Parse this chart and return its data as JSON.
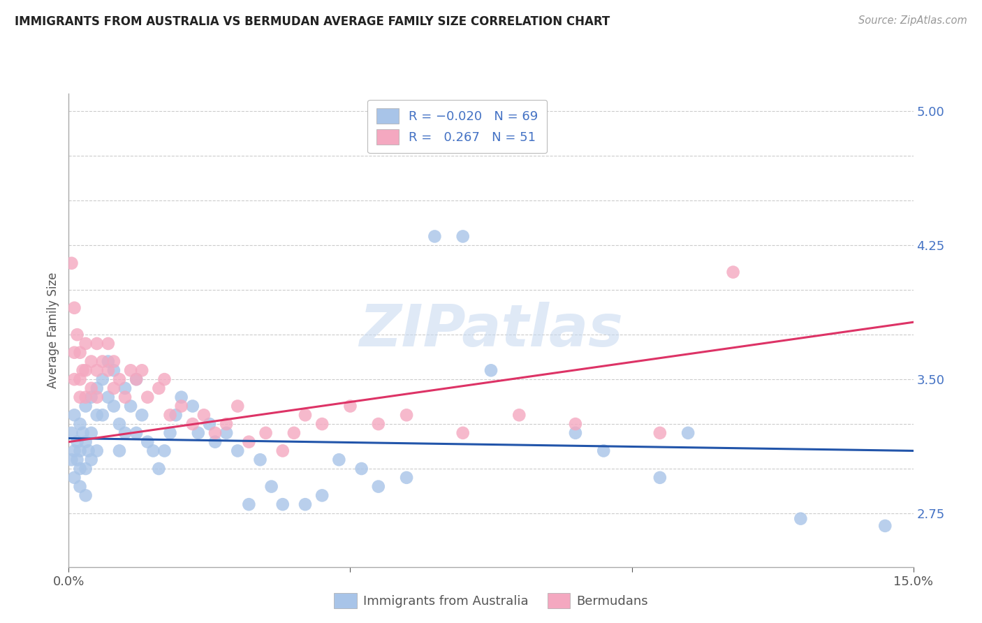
{
  "title": "IMMIGRANTS FROM AUSTRALIA VS BERMUDAN AVERAGE FAMILY SIZE CORRELATION CHART",
  "source": "Source: ZipAtlas.com",
  "ylabel": "Average Family Size",
  "yticks": [
    2.75,
    3.0,
    3.25,
    3.5,
    3.75,
    4.0,
    4.25,
    4.5,
    4.75,
    5.0
  ],
  "ytick_labels_right": [
    "2.75",
    "",
    "",
    "3.50",
    "",
    "",
    "4.25",
    "",
    "",
    "5.00"
  ],
  "xmin": 0.0,
  "xmax": 0.15,
  "ymin": 2.45,
  "ymax": 5.1,
  "color_blue": "#a8c4e8",
  "color_pink": "#f4a8c0",
  "line_blue": "#2255aa",
  "line_pink": "#dd3366",
  "watermark": "ZIPatlas",
  "australia_x": [
    0.0005,
    0.0005,
    0.001,
    0.001,
    0.001,
    0.0015,
    0.0015,
    0.002,
    0.002,
    0.002,
    0.002,
    0.0025,
    0.003,
    0.003,
    0.003,
    0.003,
    0.0035,
    0.004,
    0.004,
    0.004,
    0.005,
    0.005,
    0.005,
    0.006,
    0.006,
    0.007,
    0.007,
    0.008,
    0.008,
    0.009,
    0.009,
    0.01,
    0.01,
    0.011,
    0.012,
    0.012,
    0.013,
    0.014,
    0.015,
    0.016,
    0.017,
    0.018,
    0.019,
    0.02,
    0.022,
    0.023,
    0.025,
    0.026,
    0.028,
    0.03,
    0.032,
    0.034,
    0.036,
    0.038,
    0.042,
    0.045,
    0.048,
    0.052,
    0.055,
    0.06,
    0.065,
    0.07,
    0.075,
    0.09,
    0.095,
    0.105,
    0.11,
    0.13,
    0.145
  ],
  "australia_y": [
    3.2,
    3.05,
    3.3,
    3.1,
    2.95,
    3.15,
    3.05,
    3.25,
    3.1,
    3.0,
    2.9,
    3.2,
    3.35,
    3.15,
    3.0,
    2.85,
    3.1,
    3.4,
    3.2,
    3.05,
    3.45,
    3.3,
    3.1,
    3.5,
    3.3,
    3.6,
    3.4,
    3.55,
    3.35,
    3.25,
    3.1,
    3.45,
    3.2,
    3.35,
    3.5,
    3.2,
    3.3,
    3.15,
    3.1,
    3.0,
    3.1,
    3.2,
    3.3,
    3.4,
    3.35,
    3.2,
    3.25,
    3.15,
    3.2,
    3.1,
    2.8,
    3.05,
    2.9,
    2.8,
    2.8,
    2.85,
    3.05,
    3.0,
    2.9,
    2.95,
    4.3,
    4.3,
    3.55,
    3.2,
    3.1,
    2.95,
    3.2,
    2.72,
    2.68
  ],
  "bermuda_x": [
    0.0005,
    0.001,
    0.001,
    0.001,
    0.0015,
    0.002,
    0.002,
    0.002,
    0.0025,
    0.003,
    0.003,
    0.003,
    0.004,
    0.004,
    0.005,
    0.005,
    0.005,
    0.006,
    0.007,
    0.007,
    0.008,
    0.008,
    0.009,
    0.01,
    0.011,
    0.012,
    0.013,
    0.014,
    0.016,
    0.017,
    0.018,
    0.02,
    0.022,
    0.024,
    0.026,
    0.028,
    0.03,
    0.032,
    0.035,
    0.038,
    0.04,
    0.042,
    0.045,
    0.05,
    0.055,
    0.06,
    0.07,
    0.08,
    0.09,
    0.105,
    0.118
  ],
  "bermuda_y": [
    4.15,
    3.9,
    3.65,
    3.5,
    3.75,
    3.65,
    3.5,
    3.4,
    3.55,
    3.7,
    3.55,
    3.4,
    3.6,
    3.45,
    3.7,
    3.55,
    3.4,
    3.6,
    3.7,
    3.55,
    3.6,
    3.45,
    3.5,
    3.4,
    3.55,
    3.5,
    3.55,
    3.4,
    3.45,
    3.5,
    3.3,
    3.35,
    3.25,
    3.3,
    3.2,
    3.25,
    3.35,
    3.15,
    3.2,
    3.1,
    3.2,
    3.3,
    3.25,
    3.35,
    3.25,
    3.3,
    3.2,
    3.3,
    3.25,
    3.2,
    4.1
  ],
  "blue_line_x": [
    0.0,
    0.15
  ],
  "blue_line_y": [
    3.17,
    3.1
  ],
  "pink_line_x": [
    0.0,
    0.15
  ],
  "pink_line_y": [
    3.15,
    3.82
  ]
}
